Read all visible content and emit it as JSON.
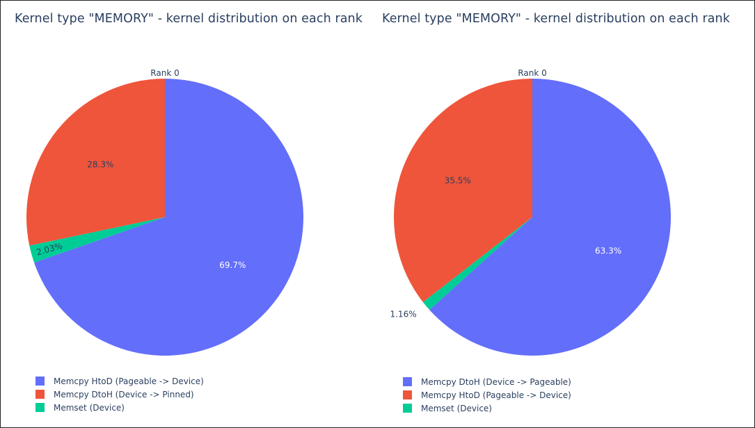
{
  "colors": {
    "blue": "#636efa",
    "red": "#ef553b",
    "green": "#00cc96"
  },
  "chart_data": [
    {
      "type": "pie",
      "title": "Kernel type \"MEMORY\" - kernel distribution on each rank",
      "pie_label": "Rank 0",
      "slices": [
        {
          "label": "Memcpy HtoD (Pageable -> Device)",
          "value": 69.7,
          "text": "69.7%",
          "color": "#636efa",
          "text_color": "#ffffff"
        },
        {
          "label": "Memset (Device)",
          "value": 2.03,
          "text": "2.03%",
          "color": "#00cc96",
          "text_color": "#2a3f5f"
        },
        {
          "label": "Memcpy DtoH (Device -> Pinned)",
          "value": 28.3,
          "text": "28.3%",
          "color": "#ef553b",
          "text_color": "#2a3f5f"
        }
      ],
      "legend": [
        {
          "label": "Memcpy HtoD (Pageable -> Device)",
          "color": "#636efa"
        },
        {
          "label": "Memcpy DtoH (Device -> Pinned)",
          "color": "#ef553b"
        },
        {
          "label": "Memset (Device)",
          "color": "#00cc96"
        }
      ],
      "legend_position": "bottom-left"
    },
    {
      "type": "pie",
      "title": "Kernel type \"MEMORY\" - kernel distribution on each rank",
      "pie_label": "Rank 0",
      "slices": [
        {
          "label": "Memcpy DtoH (Device -> Pageable)",
          "value": 63.3,
          "text": "63.3%",
          "color": "#636efa",
          "text_color": "#ffffff"
        },
        {
          "label": "Memset (Device)",
          "value": 1.16,
          "text": "1.16%",
          "color": "#00cc96",
          "text_color": "#2a3f5f",
          "outside": true
        },
        {
          "label": "Memcpy HtoD (Pageable -> Device)",
          "value": 35.5,
          "text": "35.5%",
          "color": "#ef553b",
          "text_color": "#2a3f5f"
        }
      ],
      "legend": [
        {
          "label": "Memcpy DtoH (Device -> Pageable)",
          "color": "#636efa"
        },
        {
          "label": "Memcpy HtoD (Pageable -> Device)",
          "color": "#ef553b"
        },
        {
          "label": "Memset (Device)",
          "color": "#00cc96"
        }
      ],
      "legend_position": "bottom-left"
    }
  ]
}
